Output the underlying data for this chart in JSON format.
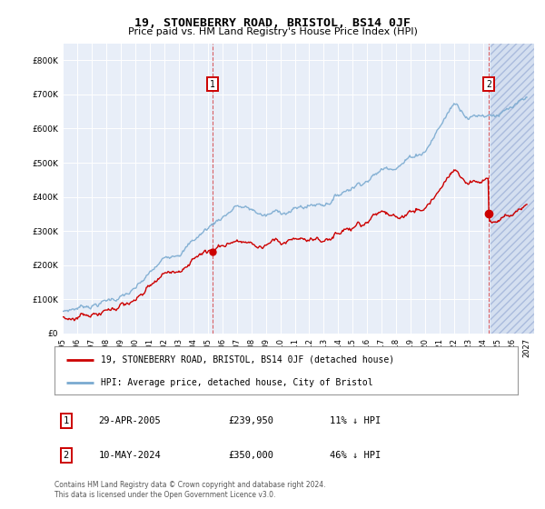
{
  "title": "19, STONEBERRY ROAD, BRISTOL, BS14 0JF",
  "subtitle": "Price paid vs. HM Land Registry's House Price Index (HPI)",
  "ytick_values": [
    0,
    100000,
    200000,
    300000,
    400000,
    500000,
    600000,
    700000,
    800000
  ],
  "ylim": [
    0,
    850000
  ],
  "xlim_start": 1995.0,
  "xlim_end": 2027.5,
  "hpi_color": "#7aaad0",
  "price_color": "#cc0000",
  "sale1_date": 2005.33,
  "sale1_price": 239950,
  "sale2_date": 2024.37,
  "sale2_price": 350000,
  "annotation1": "29-APR-2005",
  "annotation1_price": "£239,950",
  "annotation1_hpi": "11% ↓ HPI",
  "annotation2": "10-MAY-2024",
  "annotation2_price": "£350,000",
  "annotation2_hpi": "46% ↓ HPI",
  "legend_label1": "19, STONEBERRY ROAD, BRISTOL, BS14 0JF (detached house)",
  "legend_label2": "HPI: Average price, detached house, City of Bristol",
  "footer": "Contains HM Land Registry data © Crown copyright and database right 2024.\nThis data is licensed under the Open Government Licence v3.0.",
  "plot_bg": "#e8eef8",
  "hatch_bg": "#d4dff0"
}
